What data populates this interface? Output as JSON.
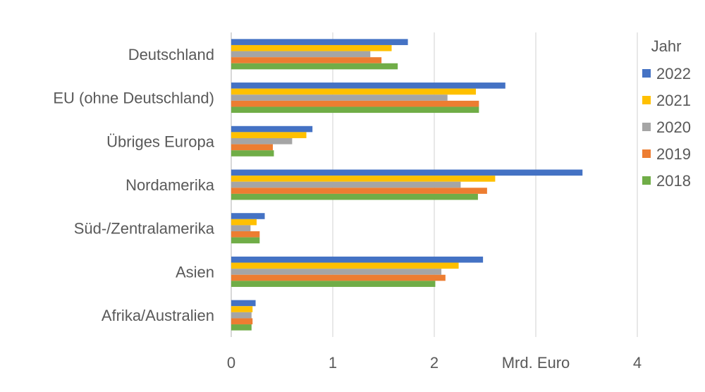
{
  "chart_data": {
    "type": "bar",
    "orientation": "horizontal",
    "categories": [
      "Deutschland",
      "EU (ohne Deutschland)",
      "Übriges Europa",
      "Nordamerika",
      "Süd-/Zentralamerika",
      "Asien",
      "Afrika/Australien"
    ],
    "series": [
      {
        "name": "2022",
        "color": "#4472C4",
        "values": [
          1.74,
          2.7,
          0.8,
          3.46,
          0.33,
          2.48,
          0.24
        ]
      },
      {
        "name": "2021",
        "color": "#FFC000",
        "values": [
          1.58,
          2.41,
          0.74,
          2.6,
          0.25,
          2.24,
          0.21
        ]
      },
      {
        "name": "2020",
        "color": "#A5A5A5",
        "values": [
          1.37,
          2.13,
          0.6,
          2.26,
          0.19,
          2.07,
          0.2
        ]
      },
      {
        "name": "2019",
        "color": "#ED7D31",
        "values": [
          1.48,
          2.44,
          0.41,
          2.52,
          0.28,
          2.11,
          0.21
        ]
      },
      {
        "name": "2018",
        "color": "#70AD47",
        "values": [
          1.64,
          2.44,
          0.42,
          2.43,
          0.28,
          2.01,
          0.2
        ]
      }
    ],
    "xlim": [
      0,
      4
    ],
    "x_tick_labels": [
      "0",
      "1",
      "2",
      "Mrd. Euro",
      "4"
    ],
    "legend_title": "Jahr",
    "legend_position": "right",
    "grid": "vertical"
  }
}
